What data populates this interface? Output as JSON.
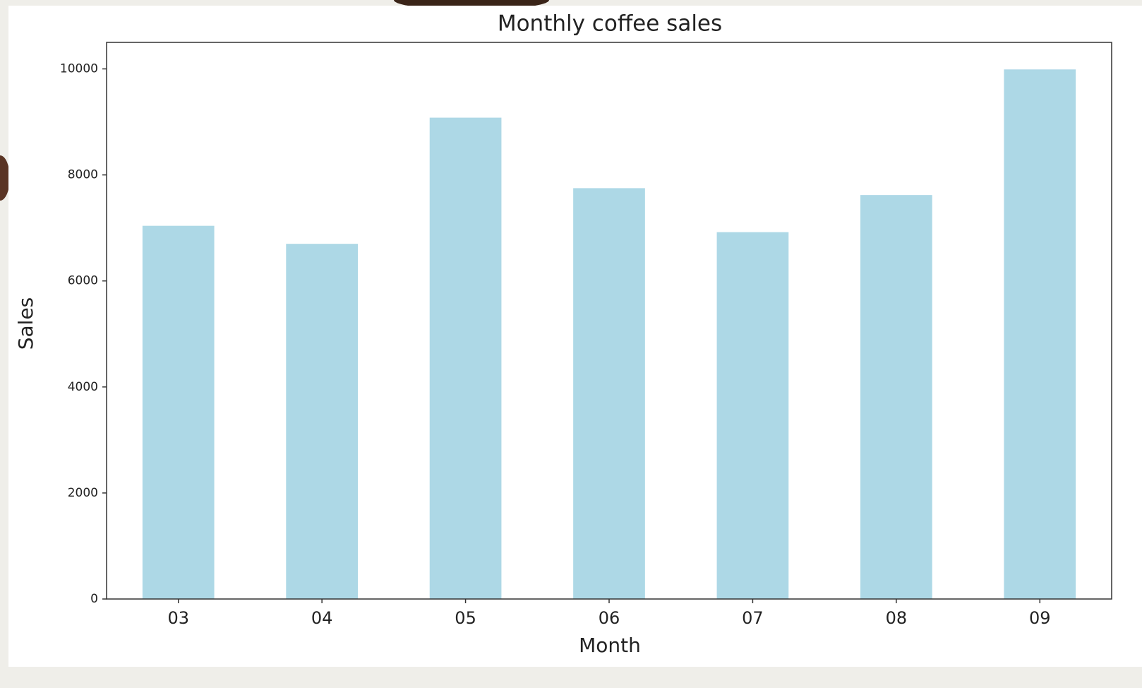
{
  "chart_data": {
    "type": "bar",
    "title": "Monthly coffee sales",
    "x_label": "Month",
    "y_label": "Sales",
    "categories": [
      "03",
      "04",
      "05",
      "06",
      "07",
      "08",
      "09"
    ],
    "values": [
      7040,
      6700,
      9080,
      7750,
      6920,
      7620,
      9990
    ],
    "color": "#add8e6",
    "ylim": [
      0,
      10500
    ],
    "yticks": [
      0,
      2000,
      4000,
      6000,
      8000,
      10000
    ],
    "grid": false
  }
}
